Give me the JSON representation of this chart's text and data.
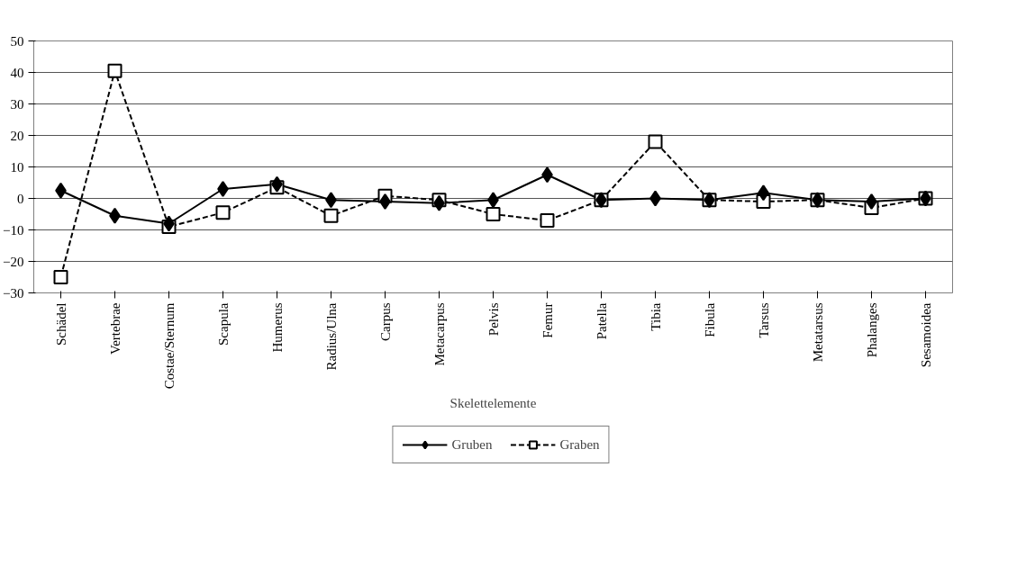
{
  "chart_data": {
    "type": "line",
    "xlabel": "Skelettelemente",
    "categories": [
      "Schädel",
      "Vertebrae",
      "Costae/Sternum",
      "Scapula",
      "Humerus",
      "Radius/Ulna",
      "Carpus",
      "Metacarpus",
      "Pelvis",
      "Femur",
      "Patella",
      "Tibia",
      "Fibula",
      "Tarsus",
      "Metatarsus",
      "Phalanges",
      "Sesamoidea"
    ],
    "series": [
      {
        "name": "Gruben",
        "color": "#000000",
        "marker": "diamond",
        "line_style": "solid",
        "values": [
          2.5,
          -5.5,
          -8,
          3,
          4.5,
          -0.5,
          -1,
          -1.5,
          -0.5,
          7.5,
          -0.5,
          0,
          -0.5,
          1.8,
          -0.5,
          -1,
          0
        ]
      },
      {
        "name": "Graben",
        "color": "#000000",
        "marker": "square",
        "line_style": "dashed",
        "values": [
          -25,
          40.5,
          -9,
          -4.5,
          3.5,
          -5.5,
          0.8,
          -0.5,
          -5,
          -7,
          -0.5,
          18,
          -0.5,
          -1,
          -0.5,
          -3,
          0
        ]
      }
    ],
    "ylim": [
      -30,
      50
    ],
    "yticks": [
      -30,
      -20,
      -10,
      0,
      10,
      20,
      30,
      40,
      50
    ],
    "grid": "y",
    "legend": "bottom"
  }
}
